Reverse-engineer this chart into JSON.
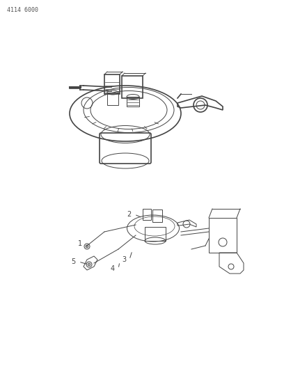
{
  "title": "4114 6000",
  "background_color": "#ffffff",
  "line_color": "#444444",
  "text_color": "#333333",
  "fig_width": 4.08,
  "fig_height": 5.33,
  "dpi": 100
}
